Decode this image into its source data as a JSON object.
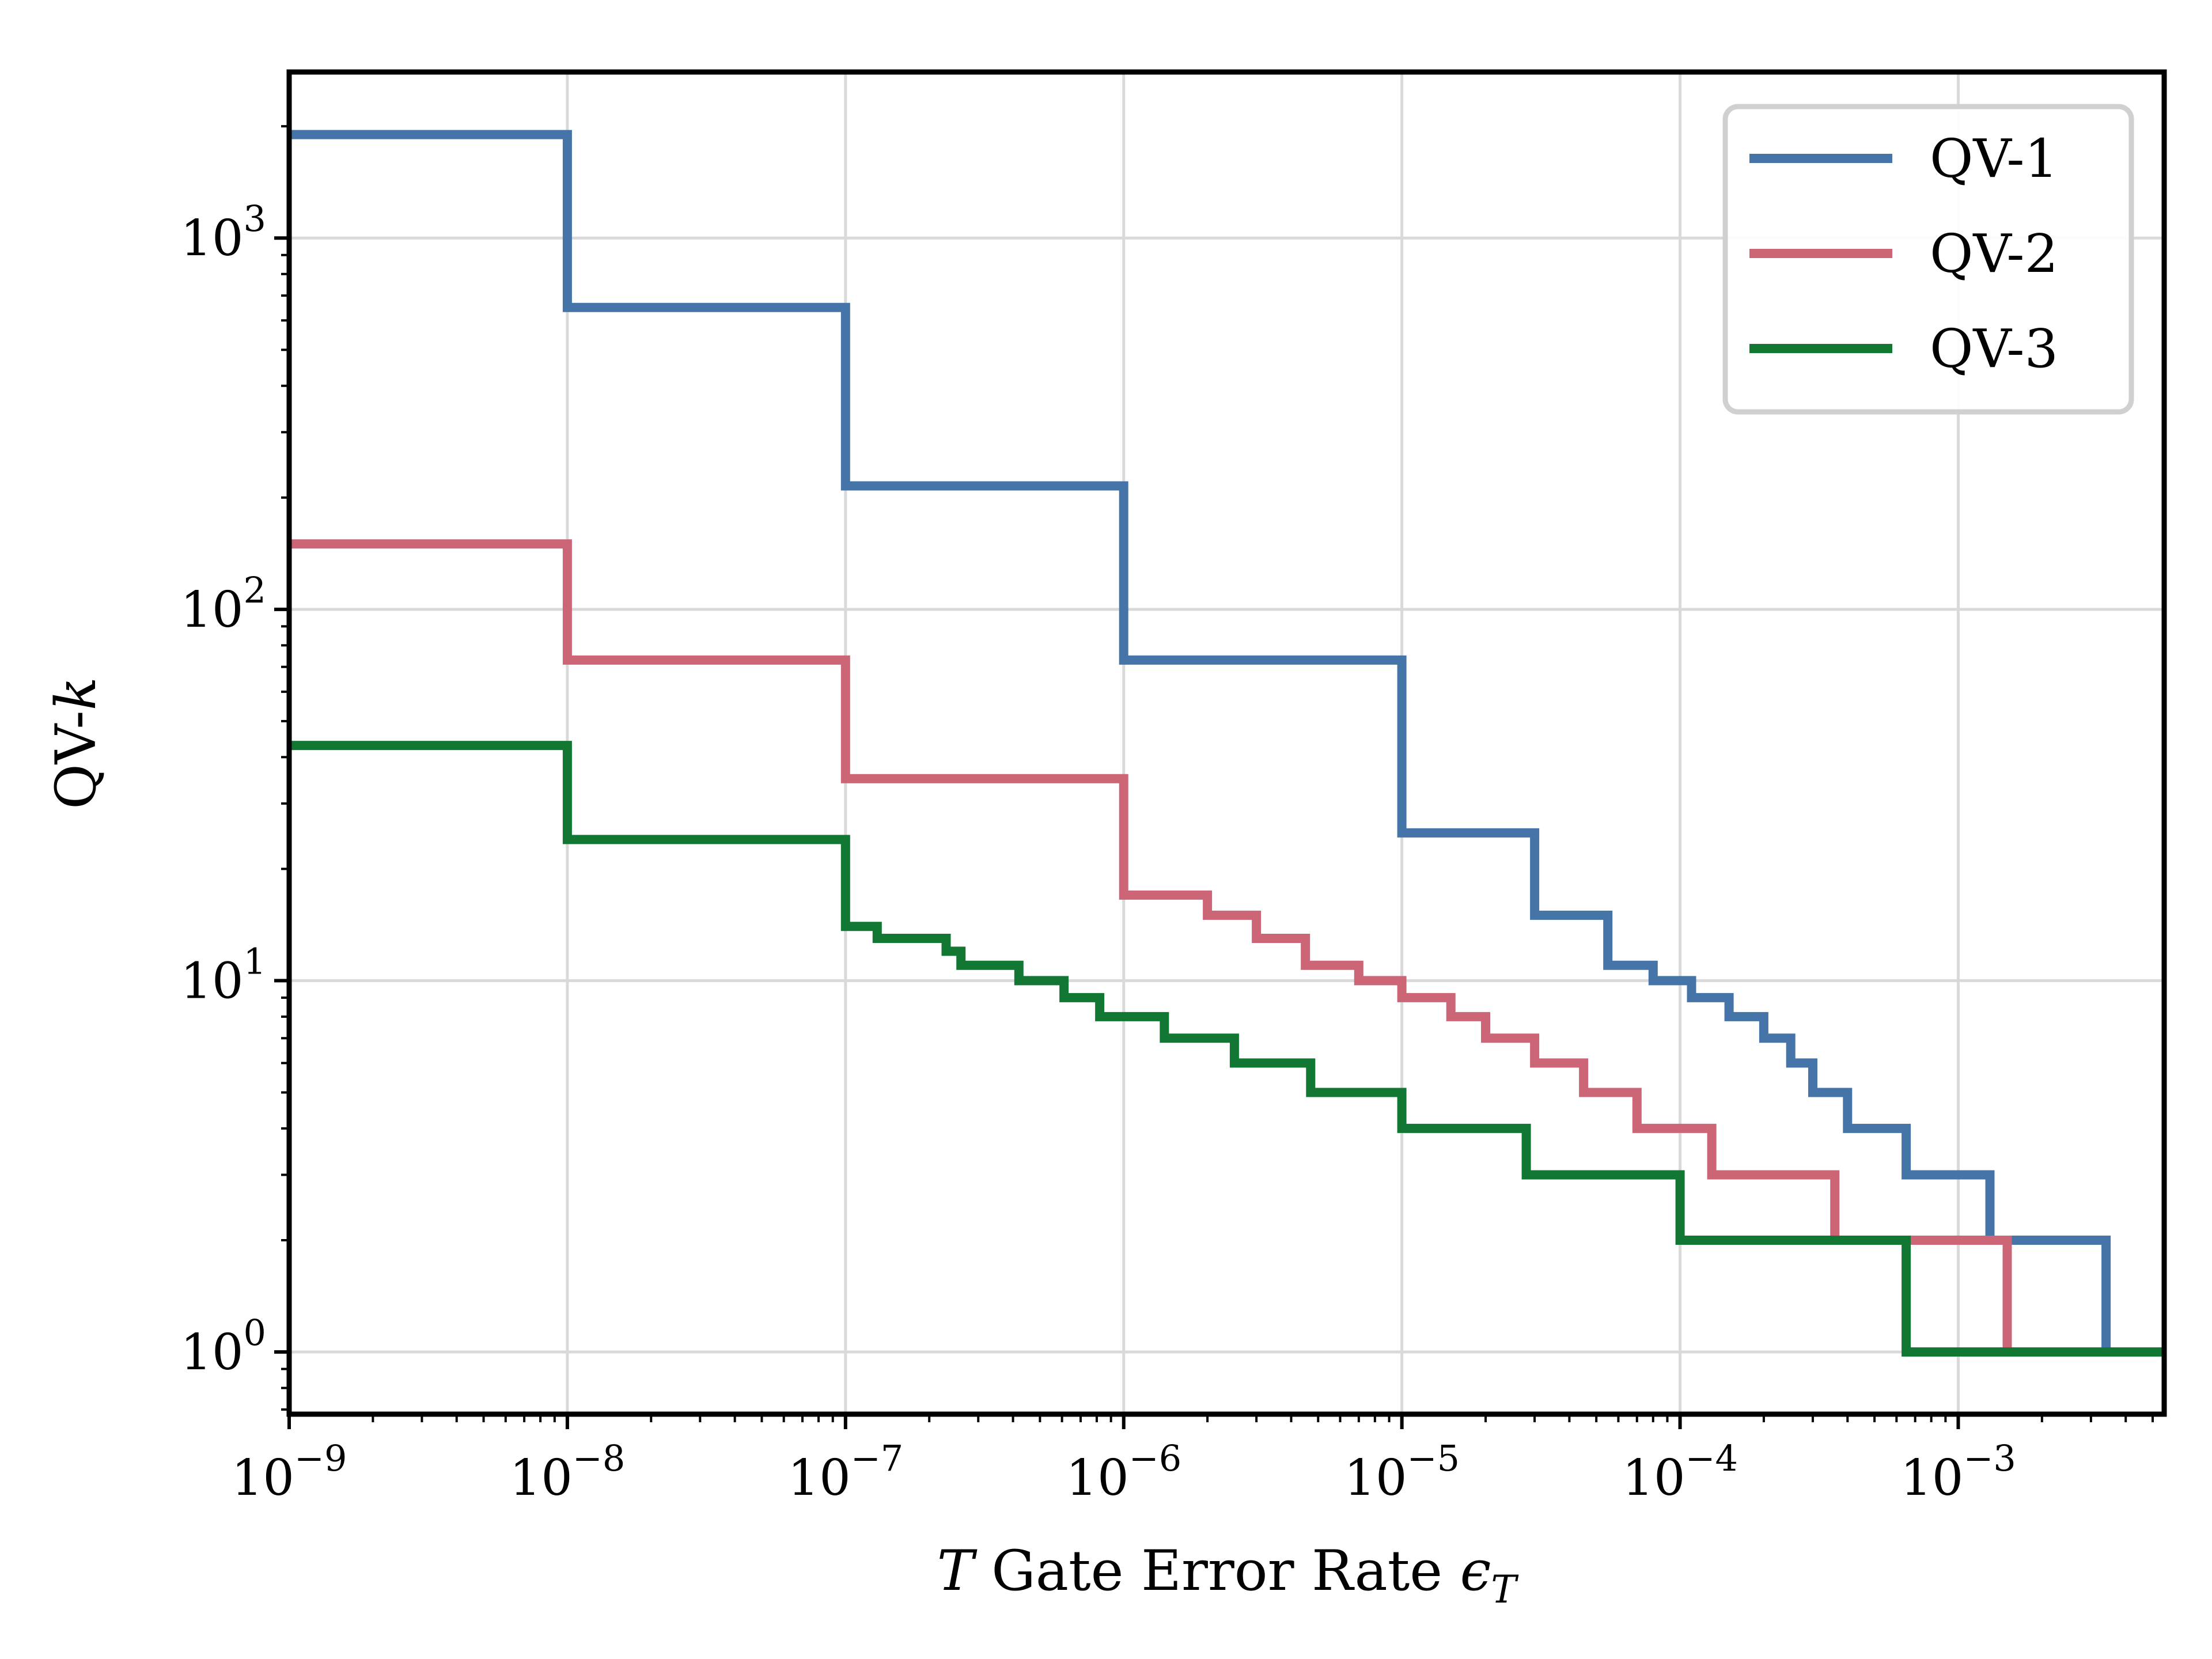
{
  "chart_data": {
    "type": "line",
    "title": "",
    "xlabel": "T Gate Error Rate ϵT",
    "ylabel": "QV-k",
    "x_scale": "log",
    "y_scale": "log",
    "xlim": [
      1e-09,
      0.0055
    ],
    "ylim": [
      0.68,
      2800
    ],
    "grid": true,
    "legend_position": "top-right",
    "x_ticks": [
      {
        "value": 1e-09,
        "base": "10",
        "exp": "−9"
      },
      {
        "value": 1e-08,
        "base": "10",
        "exp": "−8"
      },
      {
        "value": 1e-07,
        "base": "10",
        "exp": "−7"
      },
      {
        "value": 1e-06,
        "base": "10",
        "exp": "−6"
      },
      {
        "value": 1e-05,
        "base": "10",
        "exp": "−5"
      },
      {
        "value": 0.0001,
        "base": "10",
        "exp": "−4"
      },
      {
        "value": 0.001,
        "base": "10",
        "exp": "−3"
      }
    ],
    "y_ticks": [
      {
        "value": 1,
        "base": "10",
        "exp": "0"
      },
      {
        "value": 10,
        "base": "10",
        "exp": "1"
      },
      {
        "value": 100,
        "base": "10",
        "exp": "2"
      },
      {
        "value": 1000,
        "base": "10",
        "exp": "3"
      }
    ],
    "series": [
      {
        "name": "QV-1",
        "color": "#4575a8",
        "step_points": [
          [
            1e-09,
            1900
          ],
          [
            1e-08,
            650
          ],
          [
            1e-07,
            215
          ],
          [
            1e-06,
            73
          ],
          [
            1e-05,
            25
          ],
          [
            3e-05,
            15
          ],
          [
            5.5e-05,
            11
          ],
          [
            8e-05,
            10
          ],
          [
            0.00011,
            9
          ],
          [
            0.00015,
            8
          ],
          [
            0.0002,
            7
          ],
          [
            0.00025,
            6
          ],
          [
            0.0003,
            5
          ],
          [
            0.0004,
            4
          ],
          [
            0.00065,
            3
          ],
          [
            0.0013,
            2
          ],
          [
            0.0034,
            1
          ],
          [
            0.0055,
            1
          ]
        ]
      },
      {
        "name": "QV-2",
        "color": "#cc6677",
        "step_points": [
          [
            1e-09,
            150
          ],
          [
            1e-08,
            73
          ],
          [
            1e-07,
            35
          ],
          [
            1e-06,
            17
          ],
          [
            2e-06,
            15
          ],
          [
            3e-06,
            13
          ],
          [
            4.5e-06,
            11
          ],
          [
            7e-06,
            10
          ],
          [
            1e-05,
            9
          ],
          [
            1.5e-05,
            8
          ],
          [
            2e-05,
            7
          ],
          [
            3e-05,
            6
          ],
          [
            4.5e-05,
            5
          ],
          [
            7e-05,
            4
          ],
          [
            0.00013,
            3
          ],
          [
            0.00036,
            2
          ],
          [
            0.0015,
            1
          ],
          [
            0.0055,
            1
          ]
        ]
      },
      {
        "name": "QV-3",
        "color": "#117733",
        "step_points": [
          [
            1e-09,
            43
          ],
          [
            1e-08,
            24
          ],
          [
            1e-07,
            14
          ],
          [
            1.3e-07,
            13
          ],
          [
            2.3e-07,
            12
          ],
          [
            2.6e-07,
            11
          ],
          [
            4.2e-07,
            10
          ],
          [
            6.1e-07,
            9
          ],
          [
            8.2e-07,
            8
          ],
          [
            1.4e-06,
            7
          ],
          [
            2.5e-06,
            6
          ],
          [
            4.7e-06,
            5
          ],
          [
            1e-05,
            4
          ],
          [
            2.8e-05,
            3
          ],
          [
            0.0001,
            2
          ],
          [
            0.00065,
            1
          ],
          [
            0.0055,
            1
          ]
        ]
      }
    ]
  }
}
